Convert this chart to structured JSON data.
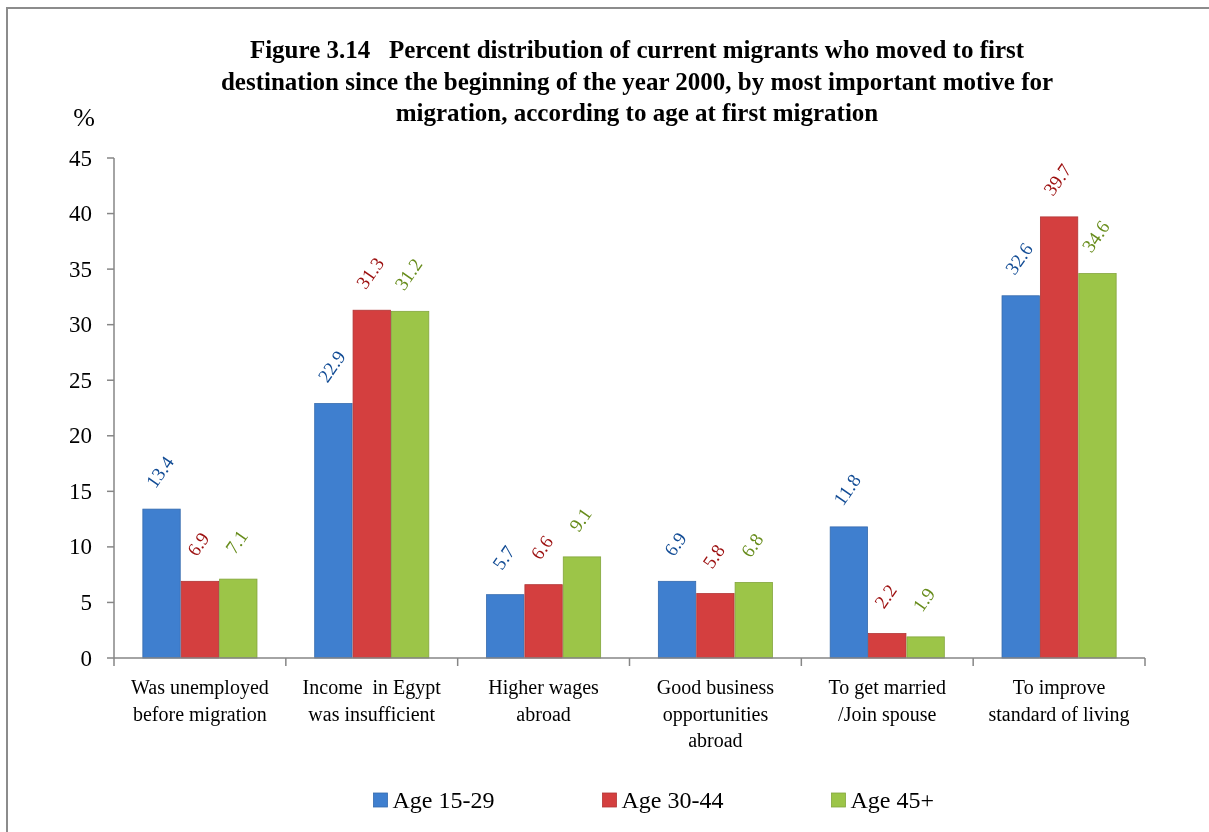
{
  "chart_data": {
    "type": "bar",
    "title": "Figure 3.14   Percent distribution of current migrants who moved to first\ndestination since the beginning of the year 2000, by most important motive for\nmigration, according to age at first migration",
    "ylabel": "%",
    "categories": [
      "Was unemployed\nbefore migration",
      "Income  in Egypt\nwas insufficient",
      "Higher wages\nabroad",
      "Good business\nopportunities\nabroad",
      "To get married\n/Join spouse",
      "To improve\nstandard of living"
    ],
    "series": [
      {
        "name": "Age 15-29",
        "color": "#3f7fcf",
        "values": [
          13.4,
          22.9,
          5.7,
          6.9,
          11.8,
          32.6
        ]
      },
      {
        "name": "Age 30-44",
        "color": "#d43f3f",
        "values": [
          6.9,
          31.3,
          6.6,
          5.8,
          2.2,
          39.7
        ]
      },
      {
        "name": "Age 45+",
        "color": "#9cc548",
        "values": [
          7.1,
          31.2,
          9.1,
          6.8,
          1.9,
          34.6
        ]
      }
    ],
    "ylim": [
      0,
      45
    ],
    "yticks": [
      0,
      5,
      10,
      15,
      20,
      25,
      30,
      35,
      40,
      45
    ],
    "data_labels": true,
    "legend": "bottom"
  }
}
